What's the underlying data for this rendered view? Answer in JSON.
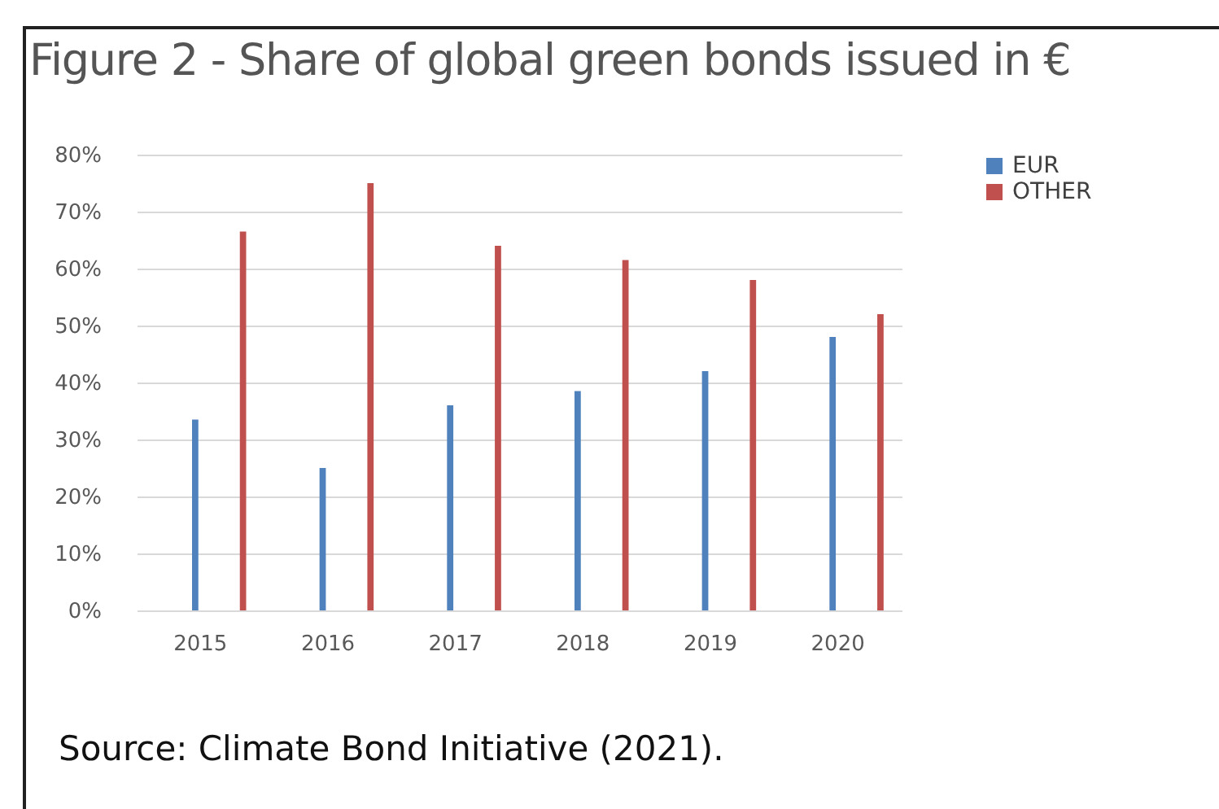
{
  "chart_data": {
    "type": "bar",
    "title": "Figure 2 - Share of global green bonds issued in €",
    "categories": [
      "2015",
      "2016",
      "2017",
      "2018",
      "2019",
      "2020"
    ],
    "series": [
      {
        "name": "EUR",
        "color": "#4f81bd",
        "values": [
          33.5,
          25,
          36,
          38.5,
          42,
          48
        ]
      },
      {
        "name": "OTHER",
        "color": "#c0504d",
        "values": [
          66.5,
          75,
          64,
          61.5,
          58,
          52
        ]
      }
    ],
    "ylim": [
      0,
      80
    ],
    "yticks": [
      {
        "value": 0,
        "label": "0%"
      },
      {
        "value": 10,
        "label": "10%"
      },
      {
        "value": 20,
        "label": "20%"
      },
      {
        "value": 30,
        "label": "30%"
      },
      {
        "value": 40,
        "label": "40%"
      },
      {
        "value": 50,
        "label": "50%"
      },
      {
        "value": 60,
        "label": "60%"
      },
      {
        "value": 70,
        "label": "70%"
      },
      {
        "value": 80,
        "label": "80%"
      }
    ],
    "grid": "y",
    "legend": "right",
    "annotations": [
      "Source: Climate Bond Initiative (2021)."
    ]
  }
}
